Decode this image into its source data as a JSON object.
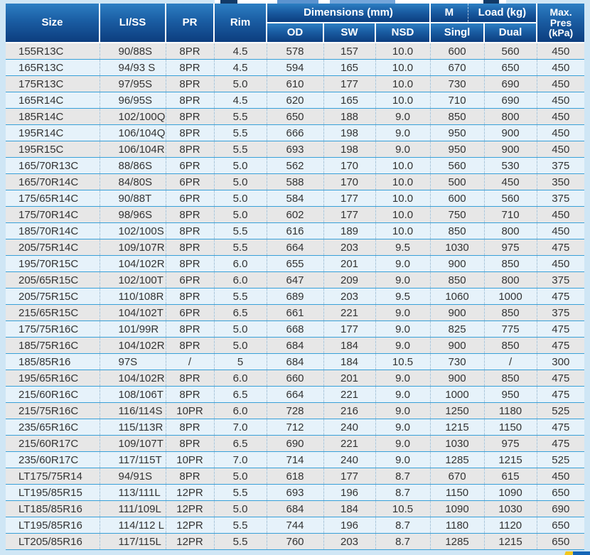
{
  "page": {
    "background_color": "#cfe6f5"
  },
  "table": {
    "header": {
      "size": "Size",
      "li_ss": "LI/SS",
      "pr": "PR",
      "rim": "Rim",
      "dimensions_group": "Dimensions (mm)",
      "m_label": "M",
      "load_label": "Load (kg)",
      "od": "OD",
      "sw": "SW",
      "nsd": "NSD",
      "single": "Singl",
      "dual": "Dual",
      "max_pres_lines": [
        "Max.",
        "Pres",
        "(kPa)"
      ]
    },
    "column_keys": [
      "size",
      "li-ss",
      "pr",
      "rim",
      "od",
      "sw",
      "nsd",
      "single-load",
      "dual-load",
      "max-pres"
    ],
    "rows": [
      [
        "155R13C",
        "90/88S",
        "8PR",
        "4.5",
        "578",
        "157",
        "10.0",
        "600",
        "560",
        "450"
      ],
      [
        "165R13C",
        "94/93 S",
        "8PR",
        "4.5",
        "594",
        "165",
        "10.0",
        "670",
        "650",
        "450"
      ],
      [
        "175R13C",
        "97/95S",
        "8PR",
        "5.0",
        "610",
        "177",
        "10.0",
        "730",
        "690",
        "450"
      ],
      [
        "165R14C",
        "96/95S",
        "8PR",
        "4.5",
        "620",
        "165",
        "10.0",
        "710",
        "690",
        "450"
      ],
      [
        "185R14C",
        "102/100Q",
        "8PR",
        "5.5",
        "650",
        "188",
        "9.0",
        "850",
        "800",
        "450"
      ],
      [
        "195R14C",
        "106/104Q",
        "8PR",
        "5.5",
        "666",
        "198",
        "9.0",
        "950",
        "900",
        "450"
      ],
      [
        "195R15C",
        "106/104R",
        "8PR",
        "5.5",
        "693",
        "198",
        "9.0",
        "950",
        "900",
        "450"
      ],
      [
        "165/70R13C",
        "88/86S",
        "6PR",
        "5.0",
        "562",
        "170",
        "10.0",
        "560",
        "530",
        "375"
      ],
      [
        "165/70R14C",
        "84/80S",
        "6PR",
        "5.0",
        "588",
        "170",
        "10.0",
        "500",
        "450",
        "350"
      ],
      [
        "175/65R14C",
        "90/88T",
        "6PR",
        "5.0",
        "584",
        "177",
        "10.0",
        "600",
        "560",
        "375"
      ],
      [
        "175/70R14C",
        "98/96S",
        "8PR",
        "5.0",
        "602",
        "177",
        "10.0",
        "750",
        "710",
        "450"
      ],
      [
        "185/70R14C",
        "102/100S",
        "8PR",
        "5.5",
        "616",
        "189",
        "10.0",
        "850",
        "800",
        "450"
      ],
      [
        "205/75R14C",
        "109/107R",
        "8PR",
        "5.5",
        "664",
        "203",
        "9.5",
        "1030",
        "975",
        "475"
      ],
      [
        "195/70R15C",
        "104/102R",
        "8PR",
        "6.0",
        "655",
        "201",
        "9.0",
        "900",
        "850",
        "450"
      ],
      [
        "205/65R15C",
        "102/100T",
        "6PR",
        "6.0",
        "647",
        "209",
        "9.0",
        "850",
        "800",
        "375"
      ],
      [
        "205/75R15C",
        "110/108R",
        "8PR",
        "5.5",
        "689",
        "203",
        "9.5",
        "1060",
        "1000",
        "475"
      ],
      [
        "215/65R15C",
        "104/102T",
        "6PR",
        "6.5",
        "661",
        "221",
        "9.0",
        "900",
        "850",
        "375"
      ],
      [
        "175/75R16C",
        "101/99R",
        "8PR",
        "5.0",
        "668",
        "177",
        "9.0",
        "825",
        "775",
        "475"
      ],
      [
        "185/75R16C",
        "104/102R",
        "8PR",
        "5.0",
        "684",
        "184",
        "9.0",
        "900",
        "850",
        "475"
      ],
      [
        "185/85R16",
        "97S",
        "/",
        "5",
        "684",
        "184",
        "10.5",
        "730",
        "/",
        "300"
      ],
      [
        "195/65R16C",
        "104/102R",
        "8PR",
        "6.0",
        "660",
        "201",
        "9.0",
        "900",
        "850",
        "475"
      ],
      [
        "215/60R16C",
        "108/106T",
        "8PR",
        "6.5",
        "664",
        "221",
        "9.0",
        "1000",
        "950",
        "475"
      ],
      [
        "215/75R16C",
        "116/114S",
        "10PR",
        "6.0",
        "728",
        "216",
        "9.0",
        "1250",
        "1180",
        "525"
      ],
      [
        "235/65R16C",
        "115/113R",
        "8PR",
        "7.0",
        "712",
        "240",
        "9.0",
        "1215",
        "1150",
        "475"
      ],
      [
        "215/60R17C",
        "109/107T",
        "8PR",
        "6.5",
        "690",
        "221",
        "9.0",
        "1030",
        "975",
        "475"
      ],
      [
        "235/60R17C",
        "117/115T",
        "10PR",
        "7.0",
        "714",
        "240",
        "9.0",
        "1285",
        "1215",
        "525"
      ],
      [
        "LT175/75R14",
        "94/91S",
        "8PR",
        "5.0",
        "618",
        "177",
        "8.7",
        "670",
        "615",
        "450"
      ],
      [
        "LT195/85R15",
        "113/111L",
        "12PR",
        "5.5",
        "693",
        "196",
        "8.7",
        "1150",
        "1090",
        "650"
      ],
      [
        "LT185/85R16",
        "111/109L",
        "12PR",
        "5.0",
        "684",
        "184",
        "10.5",
        "1090",
        "1030",
        "690"
      ],
      [
        "LT195/85R16",
        "114/112 L",
        "12PR",
        "5.5",
        "744",
        "196",
        "8.7",
        "1180",
        "1120",
        "650"
      ],
      [
        "LT205/85R16",
        "117/115L",
        "12PR",
        "5.5",
        "760",
        "203",
        "8.7",
        "1285",
        "1215",
        "650"
      ]
    ],
    "colors": {
      "header_gradient_top": "#2d7fc3",
      "header_gradient_bottom": "#0c3d7e",
      "row_gray": "#e7e7e7",
      "row_blue": "#e6f2fa",
      "row_separator": "#38a0d8",
      "logo_yellow": "#f2c71d",
      "logo_blue": "#1565b6"
    }
  }
}
